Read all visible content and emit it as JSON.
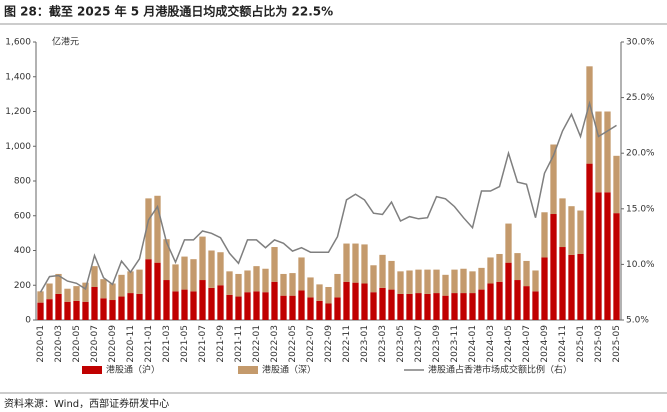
{
  "chart_data": {
    "type": "bar",
    "title": "图 28：截至 2025 年 5 月港股通日均成交额占比为 22.5%",
    "y_axis_label": "亿港元",
    "source": "资料来源：Wind，西部证券研发中心",
    "categories": [
      "2020-01",
      null,
      "2020-03",
      null,
      "2020-05",
      null,
      "2020-07",
      null,
      "2020-09",
      null,
      "2020-11",
      null,
      "2021-01",
      null,
      "2021-03",
      null,
      "2021-05",
      null,
      "2021-07",
      null,
      "2021-09",
      null,
      "2021-11",
      null,
      "2022-01",
      null,
      "2022-03",
      null,
      "2022-05",
      null,
      "2022-07",
      null,
      "2022-09",
      null,
      "2022-11",
      null,
      "2023-01",
      null,
      "2023-03",
      null,
      "2023-05",
      null,
      "2023-07",
      null,
      "2023-09",
      null,
      "2023-11",
      null,
      "2024-01",
      null,
      "2024-03",
      null,
      "2024-05",
      null,
      "2024-07",
      null,
      "2024-09",
      null,
      "2024-11",
      null,
      "2025-01",
      null,
      "2025-03",
      null,
      "2025-05"
    ],
    "series": [
      {
        "name": "港股通（沪）",
        "color": "#c00000",
        "stack": true,
        "values": [
          100,
          120,
          150,
          105,
          110,
          105,
          190,
          125,
          115,
          135,
          155,
          150,
          350,
          330,
          230,
          165,
          175,
          165,
          230,
          185,
          200,
          145,
          135,
          160,
          165,
          160,
          220,
          140,
          140,
          170,
          130,
          110,
          95,
          130,
          220,
          215,
          210,
          160,
          185,
          175,
          150,
          150,
          155,
          150,
          155,
          140,
          155,
          155,
          155,
          175,
          210,
          220,
          330,
          230,
          195,
          165,
          360,
          610,
          420,
          375,
          380,
          900,
          735,
          735,
          615
        ]
      },
      {
        "name": "港股通（深）",
        "color": "#c49a6c",
        "stack": true,
        "values": [
          65,
          90,
          115,
          75,
          85,
          110,
          120,
          110,
          95,
          125,
          125,
          140,
          350,
          385,
          235,
          155,
          190,
          185,
          250,
          215,
          190,
          135,
          130,
          125,
          145,
          135,
          200,
          125,
          130,
          190,
          115,
          95,
          95,
          135,
          220,
          225,
          225,
          155,
          190,
          165,
          130,
          135,
          135,
          140,
          135,
          120,
          135,
          140,
          125,
          125,
          150,
          160,
          225,
          155,
          145,
          120,
          260,
          400,
          280,
          280,
          250,
          560,
          465,
          465,
          330
        ]
      },
      {
        "name": "港股通占香港市场成交额比例（右）",
        "color": "#7f7f7f",
        "axis": "y2",
        "kind": "line",
        "values": [
          7.5,
          8.9,
          9.0,
          8.5,
          8.3,
          7.8,
          10.8,
          8.8,
          8.2,
          10.3,
          9.3,
          10.5,
          14.0,
          15.2,
          12.0,
          10.2,
          12.2,
          12.2,
          13.0,
          12.8,
          12.4,
          11.0,
          10.1,
          12.2,
          12.2,
          11.5,
          12.2,
          11.9,
          11.2,
          11.5,
          11.1,
          11.1,
          11.1,
          12.5,
          15.8,
          16.3,
          15.8,
          14.6,
          14.5,
          15.6,
          13.9,
          14.3,
          14.1,
          14.2,
          16.1,
          15.9,
          15.2,
          14.2,
          13.3,
          16.6,
          16.6,
          17.0,
          20.0,
          17.4,
          17.2,
          14.2,
          18.2,
          19.8,
          22.0,
          23.5,
          21.5,
          24.5,
          21.5,
          22.0,
          22.5
        ]
      }
    ],
    "ylim": [
      0,
      1600
    ],
    "yticks": [
      0,
      200,
      400,
      600,
      800,
      {
        "value": 1000,
        "label": "1,000"
      },
      {
        "value": 1200,
        "label": "1,200"
      },
      {
        "value": 1400,
        "label": "1,400"
      },
      {
        "value": 1600,
        "label": "1,600"
      }
    ],
    "y2lim": [
      5,
      30
    ],
    "y2ticks": [
      {
        "value": 5,
        "label": "5.0%"
      },
      {
        "value": 10,
        "label": "10.0%"
      },
      {
        "value": 15,
        "label": "15.0%"
      },
      {
        "value": 20,
        "label": "20.0%"
      },
      {
        "value": 25,
        "label": "25.0%"
      },
      {
        "value": 30,
        "label": "30.0%"
      }
    ],
    "grid": false,
    "legend": "bottom"
  }
}
